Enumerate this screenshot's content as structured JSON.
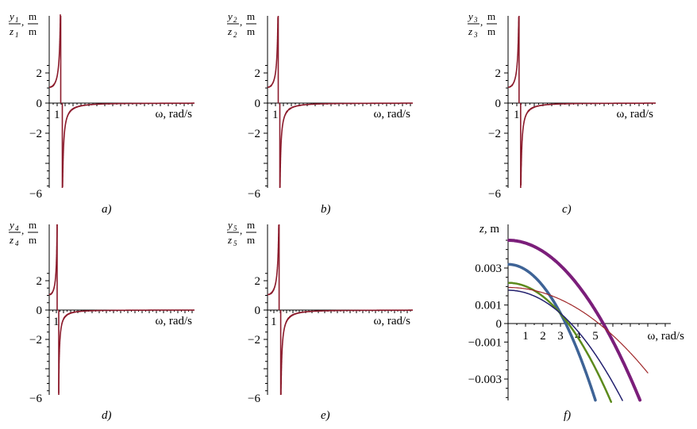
{
  "chart_data": [
    {
      "id": "a",
      "type": "line",
      "caption": "a)",
      "ylabel": {
        "numerator": "y",
        "num_sub": "1",
        "denominator": "z",
        "den_sub": "1",
        "unit_num": "m",
        "unit_den": "m"
      },
      "xlabel": "ω, rad/s",
      "y_ticks": [
        "2",
        "0",
        "−2",
        "−6"
      ],
      "x_ticks": [
        "1"
      ],
      "resonance": 1.55,
      "gain": 1.05,
      "ylim": [
        -6,
        6
      ],
      "xlim": [
        0,
        6
      ],
      "color": "#8B1A2B"
    },
    {
      "id": "b",
      "type": "line",
      "caption": "b)",
      "ylabel": {
        "numerator": "y",
        "num_sub": "2",
        "denominator": "z",
        "den_sub": "2",
        "unit_num": "m",
        "unit_den": "m"
      },
      "xlabel": "ω, rad/s",
      "y_ticks": [
        "2",
        "0",
        "−2",
        "−6"
      ],
      "x_ticks": [
        "1"
      ],
      "resonance": 1.45,
      "gain": 1.05,
      "ylim": [
        -6,
        6
      ],
      "xlim": [
        0,
        6
      ],
      "color": "#8B1A2B"
    },
    {
      "id": "c",
      "type": "line",
      "caption": "c)",
      "ylabel": {
        "numerator": "y",
        "num_sub": "3",
        "denominator": "z",
        "den_sub": "3",
        "unit_num": "m",
        "unit_den": "m"
      },
      "xlabel": "ω, rad/s",
      "y_ticks": [
        "2",
        "0",
        "−2",
        "−6"
      ],
      "x_ticks": [
        "1"
      ],
      "resonance": 1.35,
      "gain": 1.05,
      "ylim": [
        -6,
        6
      ],
      "xlim": [
        0,
        6
      ],
      "color": "#8B1A2B"
    },
    {
      "id": "d",
      "type": "line",
      "caption": "d)",
      "ylabel": {
        "numerator": "y",
        "num_sub": "4",
        "denominator": "z",
        "den_sub": "4",
        "unit_num": "m",
        "unit_den": "m"
      },
      "xlabel": "ω, rad/s",
      "y_ticks": [
        "2",
        "0",
        "−2",
        "−6"
      ],
      "x_ticks": [
        "1"
      ],
      "resonance": 1.22,
      "gain": 1.05,
      "ylim": [
        -6,
        6
      ],
      "xlim": [
        0,
        6
      ],
      "color": "#8B1A2B"
    },
    {
      "id": "e",
      "type": "line",
      "caption": "e)",
      "ylabel": {
        "numerator": "y",
        "num_sub": "5",
        "denominator": "z",
        "den_sub": "5",
        "unit_num": "m",
        "unit_den": "m"
      },
      "xlabel": "ω, rad/s",
      "y_ticks": [
        "2",
        "0",
        "−2",
        "−6"
      ],
      "x_ticks": [
        "1"
      ],
      "resonance": 1.95,
      "gain": 1.05,
      "ylim": [
        -6,
        6
      ],
      "xlim": [
        0,
        6
      ],
      "color": "#8B1A2B"
    },
    {
      "id": "f",
      "type": "line",
      "caption": "f)",
      "ylabel": "z, m",
      "xlabel": "ω, rad/s",
      "y_ticks": [
        "0.003",
        "0.001",
        "0",
        "−0.001",
        "−0.003"
      ],
      "x_ticks": [
        "1",
        "2",
        "3",
        "4",
        "5"
      ],
      "xlim": [
        0,
        8
      ],
      "ylim": [
        -0.0042,
        0.0048
      ],
      "series": [
        {
          "color": "#7B1E7A",
          "width": 4,
          "y0": 0.0045,
          "root": 5.45,
          "x_end": 7.7
        },
        {
          "color": "#3E6396",
          "width": 3.5,
          "y0": 0.0032,
          "root": 3.3,
          "x_end": 5.0
        },
        {
          "color": "#5C8A1C",
          "width": 2.5,
          "y0": 0.0022,
          "root": 3.45,
          "x_end": 5.9
        },
        {
          "color": "#22206E",
          "width": 1.5,
          "y0": 0.0018,
          "root": 3.6,
          "x_end": 6.8
        },
        {
          "color": "#A0282A",
          "width": 1.2,
          "y0": 0.00195,
          "root": 5.2,
          "x_end": 8.0
        }
      ]
    }
  ]
}
